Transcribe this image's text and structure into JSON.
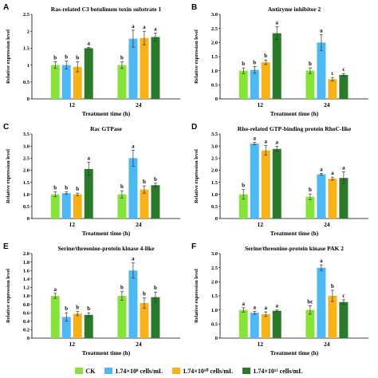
{
  "colors": [
    "#86e33a",
    "#4db8f2",
    "#f7b21a",
    "#2b7a2b"
  ],
  "chart_data": [
    {
      "panel": "A",
      "type": "bar",
      "title": "Ras-related C3 botulinum toxin substrate 1",
      "xlabel": "Treatment time (h)",
      "ylabel": "Relative expression level",
      "categories": [
        "12",
        "24"
      ],
      "ylim": [
        0,
        2.5
      ],
      "yticks": [
        "0",
        "0.5",
        "1",
        "1.5",
        "2",
        "2.5"
      ],
      "series": [
        {
          "name": "CK",
          "values": [
            1.0,
            1.0
          ],
          "errors": [
            0.1,
            0.1
          ],
          "letters": [
            "b",
            "b"
          ]
        },
        {
          "name": "1.74×10⁸ cells/mL",
          "values": [
            1.0,
            1.78
          ],
          "errors": [
            0.12,
            0.25
          ],
          "letters": [
            "b",
            "a"
          ]
        },
        {
          "name": "1.74×10¹⁰ cells/mL",
          "values": [
            0.95,
            1.8
          ],
          "errors": [
            0.15,
            0.2
          ],
          "letters": [
            "b",
            "a"
          ]
        },
        {
          "name": "1.74×10¹¹ cells/mL",
          "values": [
            1.5,
            1.83
          ],
          "errors": [
            0.02,
            0.12
          ],
          "letters": [
            "a",
            "a"
          ]
        }
      ]
    },
    {
      "panel": "B",
      "type": "bar",
      "title": "Antizyme inhibitor 2",
      "xlabel": "Treatment time (h)",
      "ylabel": "Relative expression level",
      "categories": [
        "12",
        "24"
      ],
      "ylim": [
        0,
        3.0
      ],
      "yticks": [
        "0",
        "0.5",
        "1.0",
        "1.5",
        "2.0",
        "2.5",
        "3.0"
      ],
      "series": [
        {
          "name": "CK",
          "values": [
            1.0,
            1.0
          ],
          "errors": [
            0.1,
            0.1
          ],
          "letters": [
            "b",
            "b"
          ]
        },
        {
          "name": "1.74×10⁸ cells/mL",
          "values": [
            1.03,
            2.0
          ],
          "errors": [
            0.12,
            0.28
          ],
          "letters": [
            "b",
            "a"
          ]
        },
        {
          "name": "1.74×10¹⁰ cells/mL",
          "values": [
            1.3,
            0.7
          ],
          "errors": [
            0.08,
            0.06
          ],
          "letters": [
            "b",
            "c"
          ]
        },
        {
          "name": "1.74×10¹¹ cells/mL",
          "values": [
            2.33,
            0.85
          ],
          "errors": [
            0.23,
            0.05
          ],
          "letters": [
            "a",
            "c"
          ]
        }
      ]
    },
    {
      "panel": "C",
      "type": "bar",
      "title": "Rac GTPase",
      "xlabel": "Treatment time (h)",
      "ylabel": "Relative expression level",
      "categories": [
        "12",
        "24"
      ],
      "ylim": [
        0,
        3.5
      ],
      "yticks": [
        "0",
        "0.5",
        "1.0",
        "1.5",
        "2.0",
        "2.5",
        "3.0",
        "3.5"
      ],
      "series": [
        {
          "name": "CK",
          "values": [
            1.0,
            1.0
          ],
          "errors": [
            0.1,
            0.15
          ],
          "letters": [
            "b",
            "b"
          ]
        },
        {
          "name": "1.74×10⁸ cells/mL",
          "values": [
            1.05,
            2.5
          ],
          "errors": [
            0.05,
            0.33
          ],
          "letters": [
            "b",
            "a"
          ]
        },
        {
          "name": "1.74×10¹⁰ cells/mL",
          "values": [
            1.0,
            1.2
          ],
          "errors": [
            0.05,
            0.15
          ],
          "letters": [
            "b",
            "b"
          ]
        },
        {
          "name": "1.74×10¹¹ cells/mL",
          "values": [
            2.05,
            1.38
          ],
          "errors": [
            0.28,
            0.08
          ],
          "letters": [
            "a",
            "b"
          ]
        }
      ]
    },
    {
      "panel": "D",
      "type": "bar",
      "title": "Rho-related GTP-binding protein RhoC-like",
      "xlabel": "Treatment time (h)",
      "ylabel": "Relative expression level",
      "categories": [
        "12",
        "24"
      ],
      "ylim": [
        0,
        3.5
      ],
      "yticks": [
        "0",
        "0.5",
        "1.0",
        "1.5",
        "2.0",
        "2.5",
        "3.0",
        "3.5"
      ],
      "series": [
        {
          "name": "CK",
          "values": [
            1.0,
            0.9
          ],
          "errors": [
            0.2,
            0.12
          ],
          "letters": [
            "b",
            "b"
          ]
        },
        {
          "name": "1.74×10⁸ cells/mL",
          "values": [
            3.1,
            1.83
          ],
          "errors": [
            0.05,
            0.04
          ],
          "letters": [
            "a",
            "a"
          ]
        },
        {
          "name": "1.74×10¹⁰ cells/mL",
          "values": [
            2.82,
            1.65
          ],
          "errors": [
            0.2,
            0.06
          ],
          "letters": [
            "a",
            "a"
          ]
        },
        {
          "name": "1.74×10¹¹ cells/mL",
          "values": [
            2.88,
            1.68
          ],
          "errors": [
            0.1,
            0.25
          ],
          "letters": [
            "a",
            "a"
          ]
        }
      ]
    },
    {
      "panel": "E",
      "type": "bar",
      "title": "Serine/threonine-protein kinase 4-like",
      "xlabel": "Treatment time (h)",
      "ylabel": "Relative expression level",
      "categories": [
        "12",
        "24"
      ],
      "ylim": [
        0,
        2.0
      ],
      "yticks": [
        "0",
        "0.2",
        "0.4",
        "0.6",
        "0.8",
        "1.0",
        "1.2",
        "1.4",
        "1.6",
        "1.8",
        "2.0"
      ],
      "series": [
        {
          "name": "CK",
          "values": [
            1.0,
            1.0
          ],
          "errors": [
            0.06,
            0.1
          ],
          "letters": [
            "a",
            "b"
          ]
        },
        {
          "name": "1.74×10⁸ cells/mL",
          "values": [
            0.5,
            1.6
          ],
          "errors": [
            0.1,
            0.18
          ],
          "letters": [
            "b",
            "a"
          ]
        },
        {
          "name": "1.74×10¹⁰ cells/mL",
          "values": [
            0.58,
            0.83
          ],
          "errors": [
            0.05,
            0.12
          ],
          "letters": [
            "b",
            "b"
          ]
        },
        {
          "name": "1.74×10¹¹ cells/mL",
          "values": [
            0.55,
            0.97
          ],
          "errors": [
            0.05,
            0.12
          ],
          "letters": [
            "b",
            "b"
          ]
        }
      ]
    },
    {
      "panel": "F",
      "type": "bar",
      "title": "Serine/threonine-protein kinase PAK 2",
      "xlabel": "Treatment time (h)",
      "ylabel": "Relative expression level",
      "categories": [
        "12",
        "24"
      ],
      "ylim": [
        0,
        3.0
      ],
      "yticks": [
        "0",
        "0.5",
        "1.0",
        "1.5",
        "2.0",
        "2.5",
        "3.0"
      ],
      "series": [
        {
          "name": "CK",
          "values": [
            1.0,
            1.0
          ],
          "errors": [
            0.08,
            0.15
          ],
          "letters": [
            "a",
            "bc"
          ]
        },
        {
          "name": "1.74×10⁸ cells/mL",
          "values": [
            0.9,
            2.5
          ],
          "errors": [
            0.05,
            0.1
          ],
          "letters": [
            "a",
            "a"
          ]
        },
        {
          "name": "1.74×10¹⁰ cells/mL",
          "values": [
            0.85,
            1.5
          ],
          "errors": [
            0.08,
            0.2
          ],
          "letters": [
            "a",
            "b"
          ]
        },
        {
          "name": "1.74×10¹¹ cells/mL",
          "values": [
            0.97,
            1.28
          ],
          "errors": [
            0.03,
            0.08
          ],
          "letters": [
            "a",
            "c"
          ]
        }
      ]
    }
  ],
  "legend": [
    {
      "label": "CK",
      "color": "#86e33a"
    },
    {
      "label": "1.74×10⁸ cells/mL",
      "color": "#4db8f2"
    },
    {
      "label": "1.74×10¹⁰ cells/mL",
      "color": "#f7b21a"
    },
    {
      "label": "1.74×10¹¹ cells/mL",
      "color": "#2b7a2b"
    }
  ]
}
